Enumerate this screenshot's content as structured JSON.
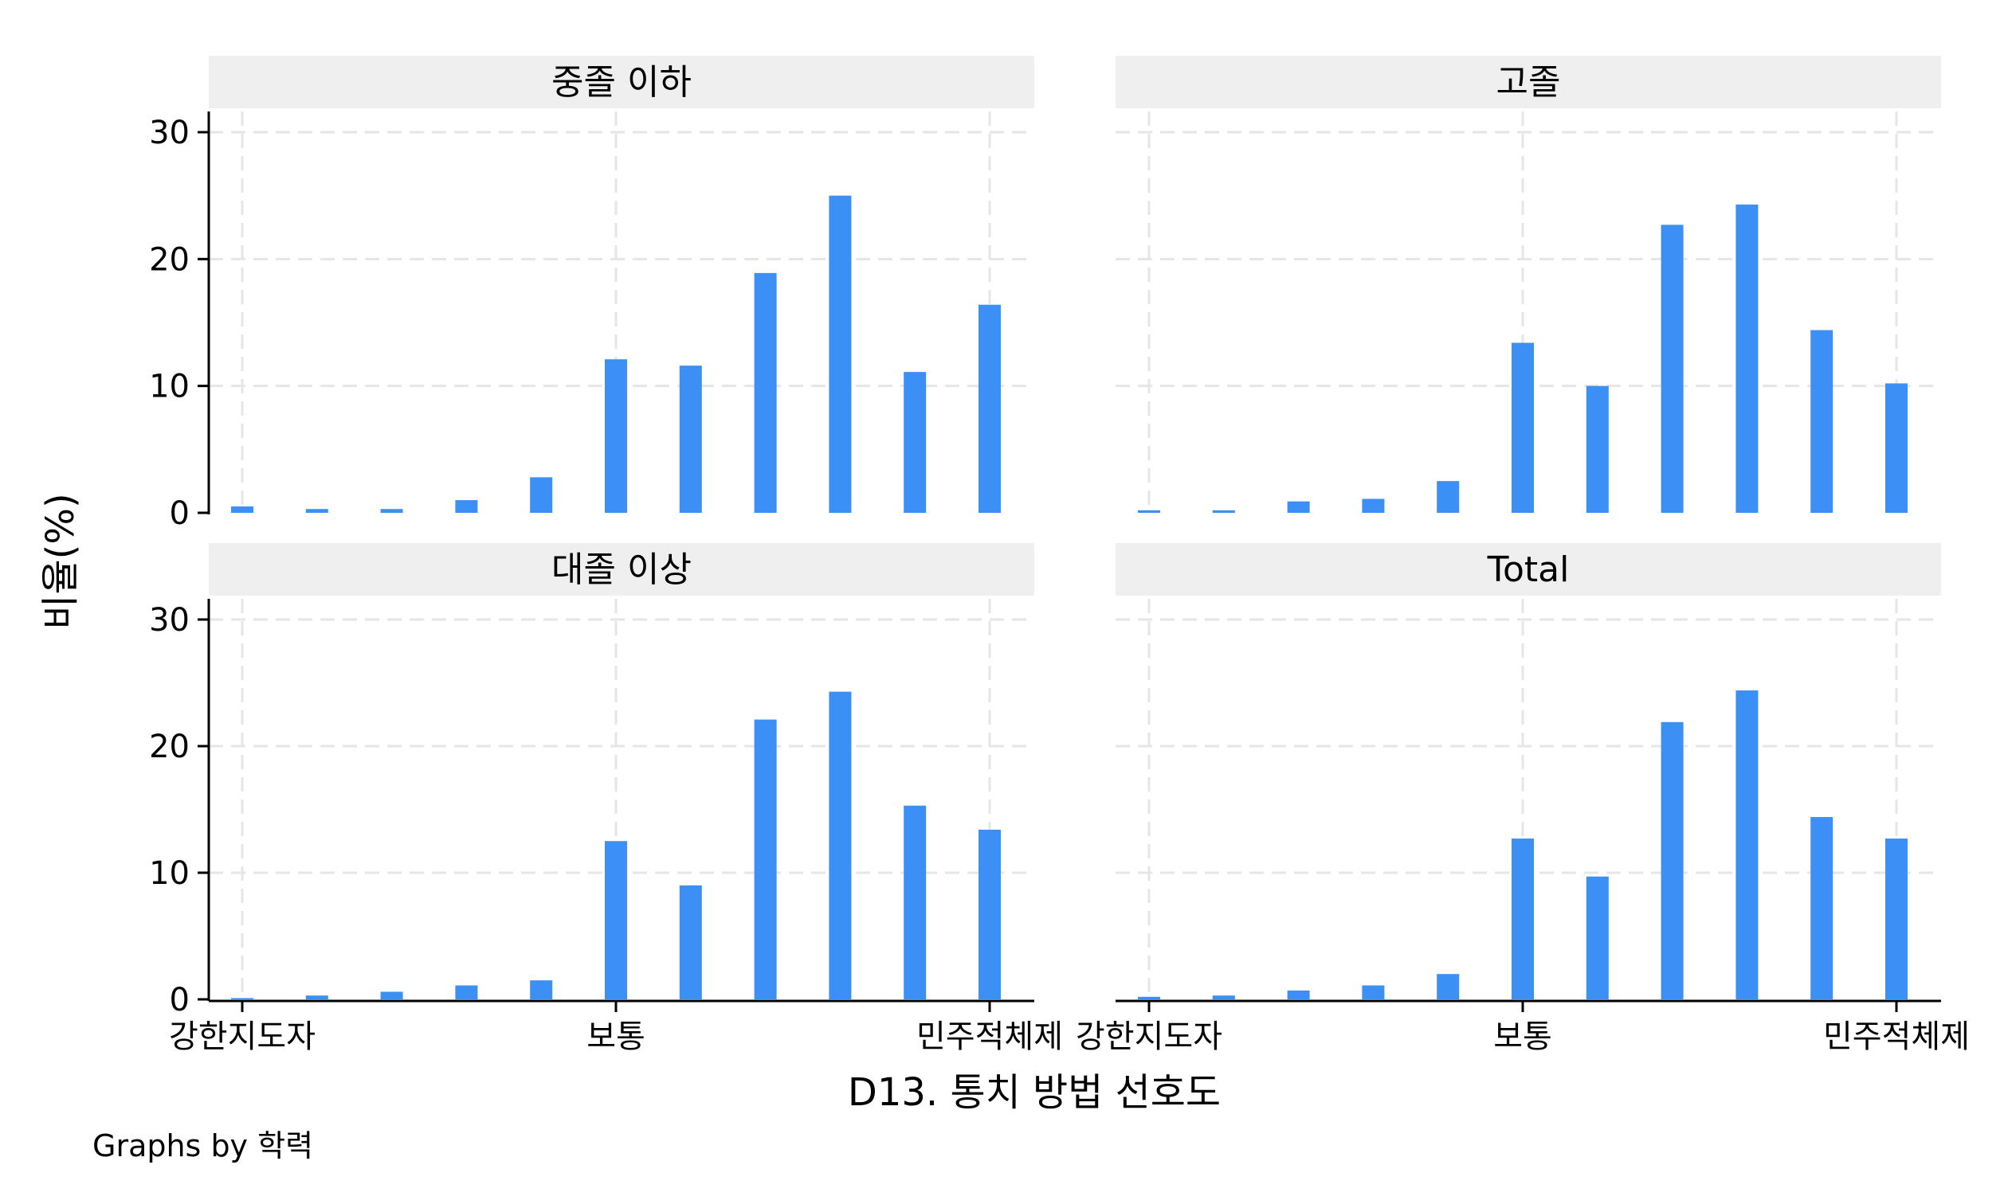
{
  "chart_data": {
    "type": "bar",
    "xlabel": "D13. 통치 방법 선호도",
    "ylabel": "비율(%)",
    "note": "Graphs by 학력",
    "x_range": [
      0,
      10
    ],
    "ylim": [
      0,
      30
    ],
    "yticks": [
      0,
      10,
      20,
      30
    ],
    "xticks": [
      {
        "value": 0,
        "label": "강한지도자"
      },
      {
        "value": 5,
        "label": "보통"
      },
      {
        "value": 10,
        "label": "민주적체제"
      }
    ],
    "grid": true,
    "bar_color": "#3b8ff5",
    "panel_header_color": "#efefef",
    "panels": [
      {
        "title": "중졸 이하",
        "x": [
          0,
          1,
          2,
          3,
          4,
          5,
          6,
          7,
          8,
          9,
          10
        ],
        "values": [
          0.5,
          0.3,
          0.3,
          1.0,
          2.8,
          12.1,
          11.6,
          18.9,
          25.0,
          11.1,
          16.4
        ]
      },
      {
        "title": "고졸",
        "x": [
          0,
          1,
          2,
          3,
          4,
          5,
          6,
          7,
          8,
          9,
          10
        ],
        "values": [
          0.2,
          0.2,
          0.9,
          1.1,
          2.5,
          13.4,
          10.0,
          22.7,
          24.3,
          14.4,
          10.2
        ]
      },
      {
        "title": "대졸 이상",
        "x": [
          0,
          1,
          2,
          3,
          4,
          5,
          6,
          7,
          8,
          9,
          10
        ],
        "values": [
          0.1,
          0.3,
          0.6,
          1.1,
          1.5,
          12.5,
          9.0,
          22.1,
          24.3,
          15.3,
          13.4
        ]
      },
      {
        "title": "Total",
        "x": [
          0,
          1,
          2,
          3,
          4,
          5,
          6,
          7,
          8,
          9,
          10
        ],
        "values": [
          0.2,
          0.3,
          0.7,
          1.1,
          2.0,
          12.7,
          9.7,
          21.9,
          24.4,
          14.4,
          12.7
        ]
      }
    ]
  }
}
